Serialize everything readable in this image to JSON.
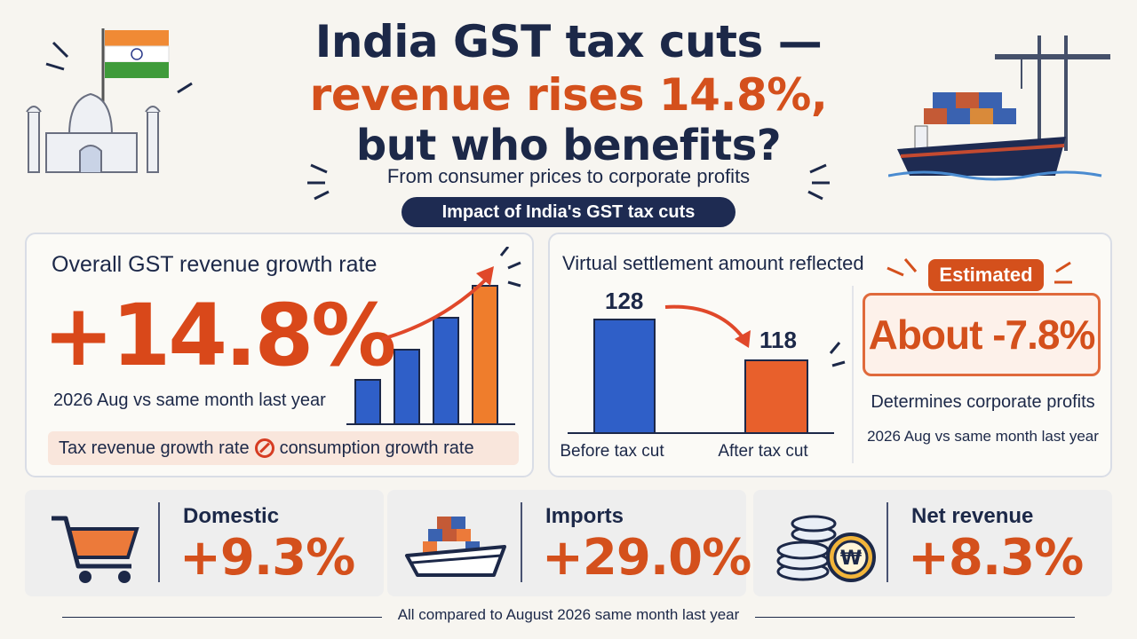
{
  "header": {
    "title_line1": "India  GST tax cuts —",
    "title_line2": "revenue rises 14.8%,",
    "title_line3": "but who benefits?",
    "subtitle": "From consumer prices to corporate profits",
    "pill": "Impact of India's GST tax cuts"
  },
  "growth_panel": {
    "heading": "Overall GST revenue growth rate",
    "value": "+14.8%",
    "period": "2026 Aug vs same month last year",
    "note_left": "Tax revenue growth rate",
    "note_right": "consumption growth rate",
    "note_icon": "not-equal-icon",
    "bar_levels": [
      0.25,
      0.42,
      0.6,
      0.78
    ],
    "bar_colors": [
      "#2f5fc8",
      "#2f5fc8",
      "#2f5fc8",
      "#ef7d2c"
    ]
  },
  "settlement_panel": {
    "heading": "Virtual settlement amount reflected",
    "before_value": "128",
    "after_value": "118",
    "before_label": "Before tax cut",
    "after_label": "After tax cut",
    "estimated_badge": "Estimated",
    "estimated_value": "About -7.8%",
    "description": "Determines corporate profits",
    "period": "2026 Aug vs same month last year"
  },
  "cards": [
    {
      "label": "Domestic",
      "value": "+9.3%",
      "icon": "shopping-cart-icon"
    },
    {
      "label": "Imports",
      "value": "+29.0%",
      "icon": "cargo-ship-icon"
    },
    {
      "label": "Net revenue",
      "value": "+8.3%",
      "icon": "coin-stack-icon"
    }
  ],
  "footer": "All compared to August 2026 same month last year",
  "colors": {
    "navy": "#1c2848",
    "accent_orange": "#d4501c",
    "bar_blue": "#2f5fc8",
    "bar_orange": "#ef7d2c"
  }
}
